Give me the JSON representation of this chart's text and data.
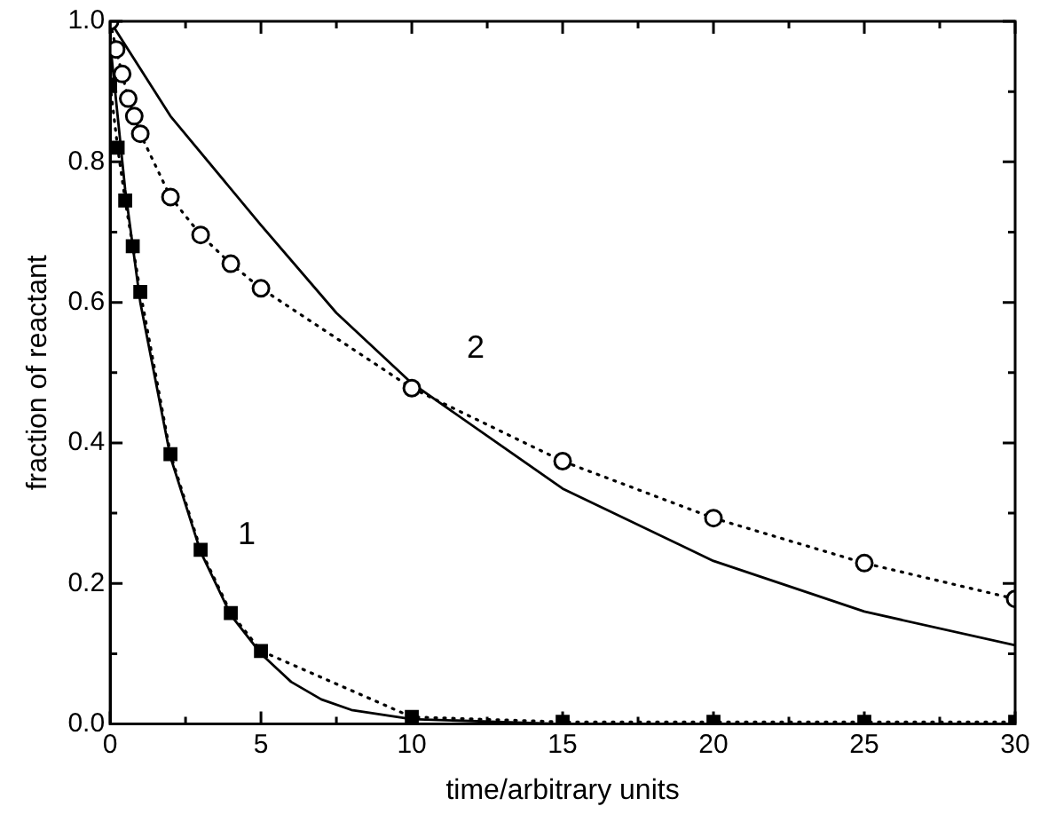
{
  "chart_data": {
    "type": "line",
    "xlabel": "time/arbitrary units",
    "ylabel": "fraction of reactant",
    "xlim": [
      0,
      30
    ],
    "ylim": [
      0,
      1
    ],
    "xticks": [
      0,
      {
        "value": 2.5,
        "label": null
      },
      5,
      {
        "value": 7.5,
        "label": null
      },
      10,
      {
        "value": 12.5,
        "label": null
      },
      15,
      {
        "value": 17.5,
        "label": null
      },
      20,
      {
        "value": 22.5,
        "label": null
      },
      25,
      {
        "value": 27.5,
        "label": null
      },
      30
    ],
    "yticks": [
      {
        "value": 0,
        "label": "0.0"
      },
      {
        "value": 0.1,
        "label": null
      },
      {
        "value": 0.2,
        "label": "0.2"
      },
      {
        "value": 0.3,
        "label": null
      },
      {
        "value": 0.4,
        "label": "0.4"
      },
      {
        "value": 0.5,
        "label": null
      },
      {
        "value": 0.6,
        "label": "0.6"
      },
      {
        "value": 0.7,
        "label": null
      },
      {
        "value": 0.8,
        "label": "0.8"
      },
      {
        "value": 0.9,
        "label": null
      },
      {
        "value": 1,
        "label": "1.0"
      }
    ],
    "grid": false,
    "legend": false,
    "series": [
      {
        "type": "line",
        "marker": "square",
        "color": "#000000",
        "line_style": "dotted",
        "x": [
          0,
          0.25,
          0.5,
          0.75,
          1,
          2,
          3,
          4,
          5,
          10,
          15,
          20,
          25,
          30
        ],
        "values": [
          0.91,
          0.82,
          0.745,
          0.68,
          0.615,
          0.384,
          0.248,
          0.158,
          0.104,
          0.01,
          0.003,
          0.003,
          0.003,
          0.003
        ]
      },
      {
        "type": "line",
        "marker": "circle",
        "color": "#000000",
        "line_style": "dotted",
        "x": [
          0,
          0.2,
          0.4,
          0.6,
          0.8,
          1,
          2,
          3,
          4,
          5,
          10,
          15,
          20,
          25,
          30
        ],
        "values": [
          1,
          0.96,
          0.925,
          0.89,
          0.865,
          0.84,
          0.75,
          0.696,
          0.655,
          0.62,
          0.478,
          0.374,
          0.293,
          0.229,
          0.178
        ]
      },
      {
        "type": "line",
        "marker": "none",
        "color": "#000000",
        "line_style": "solid",
        "x": [
          0,
          0.5,
          1,
          2,
          3,
          4,
          5,
          6,
          7,
          8,
          10,
          15,
          20,
          30
        ],
        "values": [
          0.97,
          0.76,
          0.6,
          0.38,
          0.245,
          0.155,
          0.1,
          0.06,
          0.035,
          0.02,
          0.007,
          0,
          0,
          0
        ]
      },
      {
        "type": "line",
        "marker": "none",
        "color": "#000000",
        "line_style": "solid",
        "x": [
          0,
          2,
          5,
          7.5,
          10,
          15,
          20,
          25,
          30
        ],
        "values": [
          1,
          0.865,
          0.71,
          0.585,
          0.485,
          0.335,
          0.232,
          0.16,
          0.112
        ]
      }
    ],
    "annotations": [
      "1",
      "2"
    ]
  }
}
